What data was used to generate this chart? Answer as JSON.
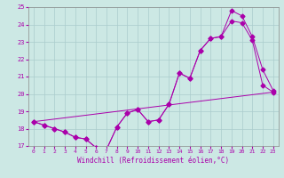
{
  "xlabel": "Windchill (Refroidissement éolien,°C)",
  "bg_color": "#cce8e4",
  "grid_color": "#aacccc",
  "line_color": "#aa00aa",
  "xlim": [
    -0.5,
    23.5
  ],
  "ylim": [
    17,
    25
  ],
  "xticks": [
    0,
    1,
    2,
    3,
    4,
    5,
    6,
    7,
    8,
    9,
    10,
    11,
    12,
    13,
    14,
    15,
    16,
    17,
    18,
    19,
    20,
    21,
    22,
    23
  ],
  "yticks": [
    17,
    18,
    19,
    20,
    21,
    22,
    23,
    24,
    25
  ],
  "line1_x": [
    0,
    1,
    2,
    3,
    4,
    5,
    6,
    7,
    8,
    9,
    10,
    11,
    12,
    13,
    14,
    15,
    16,
    17,
    18,
    19,
    20,
    21,
    22,
    23
  ],
  "line1_y": [
    18.4,
    18.2,
    18.0,
    17.8,
    17.5,
    17.4,
    16.9,
    16.8,
    18.1,
    18.9,
    19.1,
    18.4,
    18.5,
    19.4,
    21.2,
    20.9,
    22.5,
    23.2,
    23.3,
    24.8,
    24.5,
    23.3,
    21.4,
    20.2
  ],
  "line2_x": [
    0,
    1,
    2,
    3,
    4,
    5,
    6,
    7,
    8,
    9,
    10,
    11,
    12,
    13,
    14,
    15,
    16,
    17,
    18,
    19,
    20,
    21,
    22,
    23
  ],
  "line2_y": [
    18.4,
    18.2,
    18.0,
    17.8,
    17.5,
    17.4,
    16.9,
    16.8,
    18.1,
    18.9,
    19.1,
    18.4,
    18.5,
    19.4,
    21.2,
    20.9,
    22.5,
    23.2,
    23.3,
    24.2,
    24.1,
    23.1,
    20.5,
    20.1
  ],
  "line3_x": [
    0,
    23
  ],
  "line3_y": [
    18.4,
    20.1
  ],
  "markersize": 2.5
}
